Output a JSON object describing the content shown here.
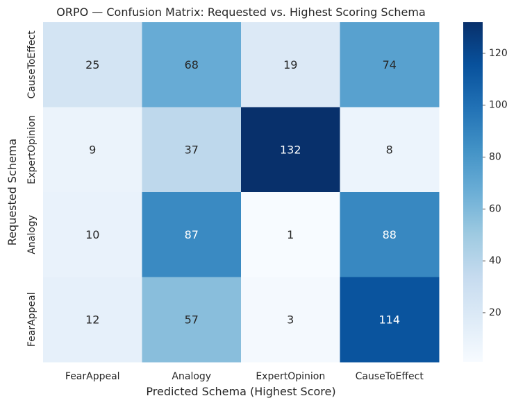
{
  "chart_data": {
    "type": "heatmap",
    "title": "ORPO — Confusion Matrix: Requested vs. Highest Scoring Schema",
    "xlabel": "Predicted Schema (Highest Score)",
    "ylabel": "Requested Schema",
    "x_categories": [
      "FearAppeal",
      "Analogy",
      "ExpertOpinion",
      "CauseToEffect"
    ],
    "y_categories": [
      "CauseToEffect",
      "ExpertOpinion",
      "Analogy",
      "FearAppeal"
    ],
    "values": [
      [
        25,
        68,
        19,
        74
      ],
      [
        9,
        37,
        132,
        8
      ],
      [
        10,
        87,
        1,
        88
      ],
      [
        12,
        57,
        3,
        114
      ]
    ],
    "colormap": "Blues",
    "color_range": [
      1,
      132
    ],
    "colorbar": {
      "ticks": [
        20,
        40,
        60,
        80,
        100,
        120
      ]
    },
    "grid": false,
    "colors": {
      "low": "#f7fbff",
      "high": "#08306b",
      "text_dark": "#262626",
      "text_light": "#ffffff"
    }
  }
}
